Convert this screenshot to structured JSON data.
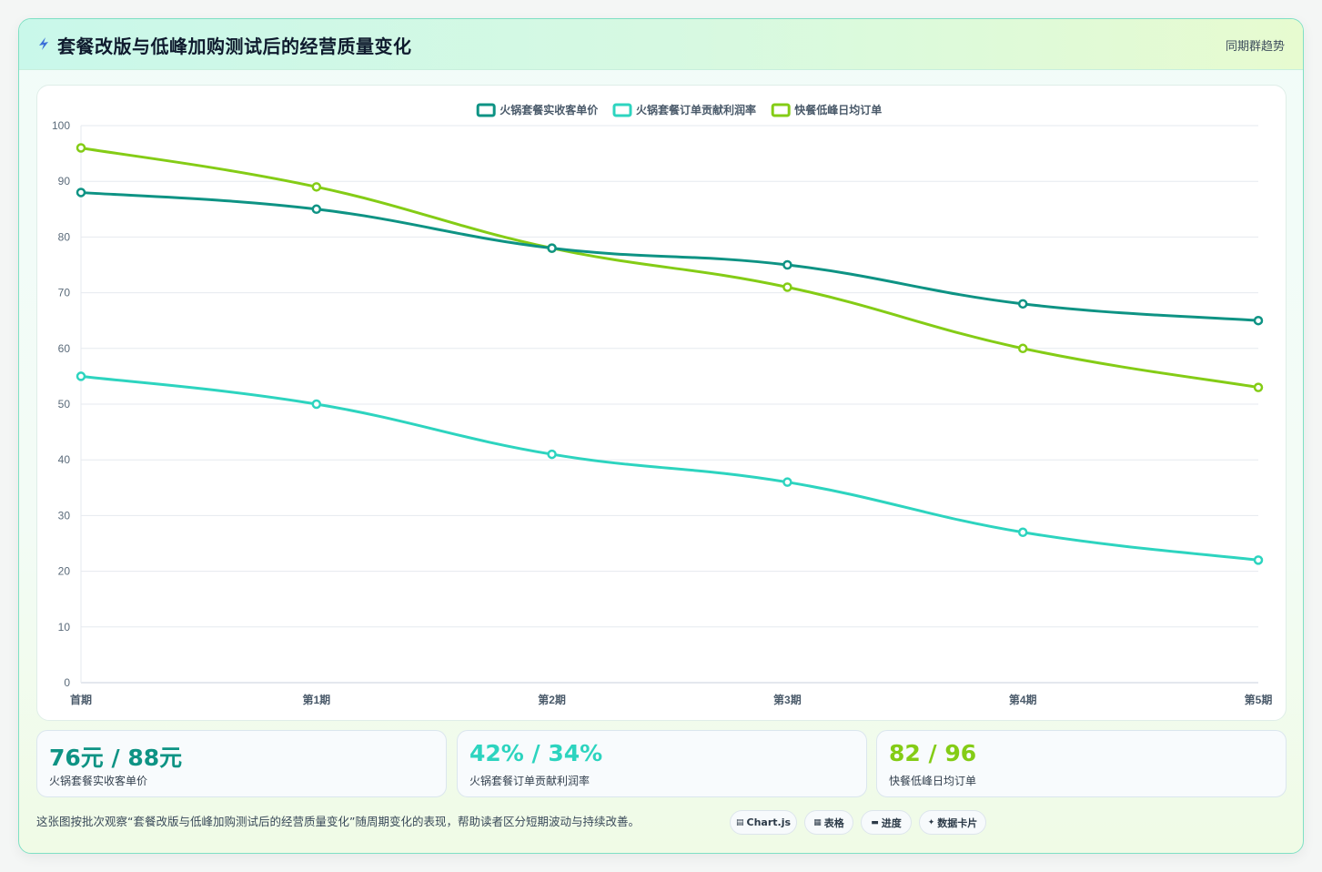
{
  "header": {
    "title": "套餐改版与低峰加购测试后的经营质量变化",
    "trend_link": "同期群趋势"
  },
  "colors": {
    "series1": "#0e9384",
    "series2": "#2dd4bf",
    "series3": "#84cc16"
  },
  "chart_data": {
    "type": "line",
    "categories": [
      "首期",
      "第1期",
      "第2期",
      "第3期",
      "第4期",
      "第5期"
    ],
    "ylim": [
      0,
      100
    ],
    "yticks": [
      0,
      10,
      20,
      30,
      40,
      50,
      60,
      70,
      80,
      90,
      100
    ],
    "grid": true,
    "legend_position": "top-center",
    "series": [
      {
        "name": "火锅套餐实收客单价",
        "color": "#0e9384",
        "values": [
          88,
          85,
          78,
          75,
          68,
          65
        ]
      },
      {
        "name": "火锅套餐订单贡献利润率",
        "color": "#2dd4bf",
        "values": [
          55,
          50,
          41,
          36,
          27,
          22
        ]
      },
      {
        "name": "快餐低峰日均订单",
        "color": "#84cc16",
        "values": [
          96,
          89,
          78,
          71,
          60,
          53
        ]
      }
    ]
  },
  "stats": [
    {
      "value": "76元 / 88元",
      "label": "火锅套餐实收客单价",
      "color": "#0e9384"
    },
    {
      "value": "42% / 34%",
      "label": "火锅套餐订单贡献利润率",
      "color": "#2dd4bf"
    },
    {
      "value": "82 / 96",
      "label": "快餐低峰日均订单",
      "color": "#84cc16"
    }
  ],
  "footnote": "这张图按批次观察“套餐改版与低峰加购测试后的经营质量变化”随周期变化的表现，帮助读者区分短期波动与持续改善。",
  "chips": [
    {
      "icon": "chart-icon",
      "label": "Chart.js"
    },
    {
      "icon": "table-icon",
      "label": "表格"
    },
    {
      "icon": "progress-icon",
      "label": "进度"
    },
    {
      "icon": "sparkle-icon",
      "label": "数据卡片"
    }
  ]
}
